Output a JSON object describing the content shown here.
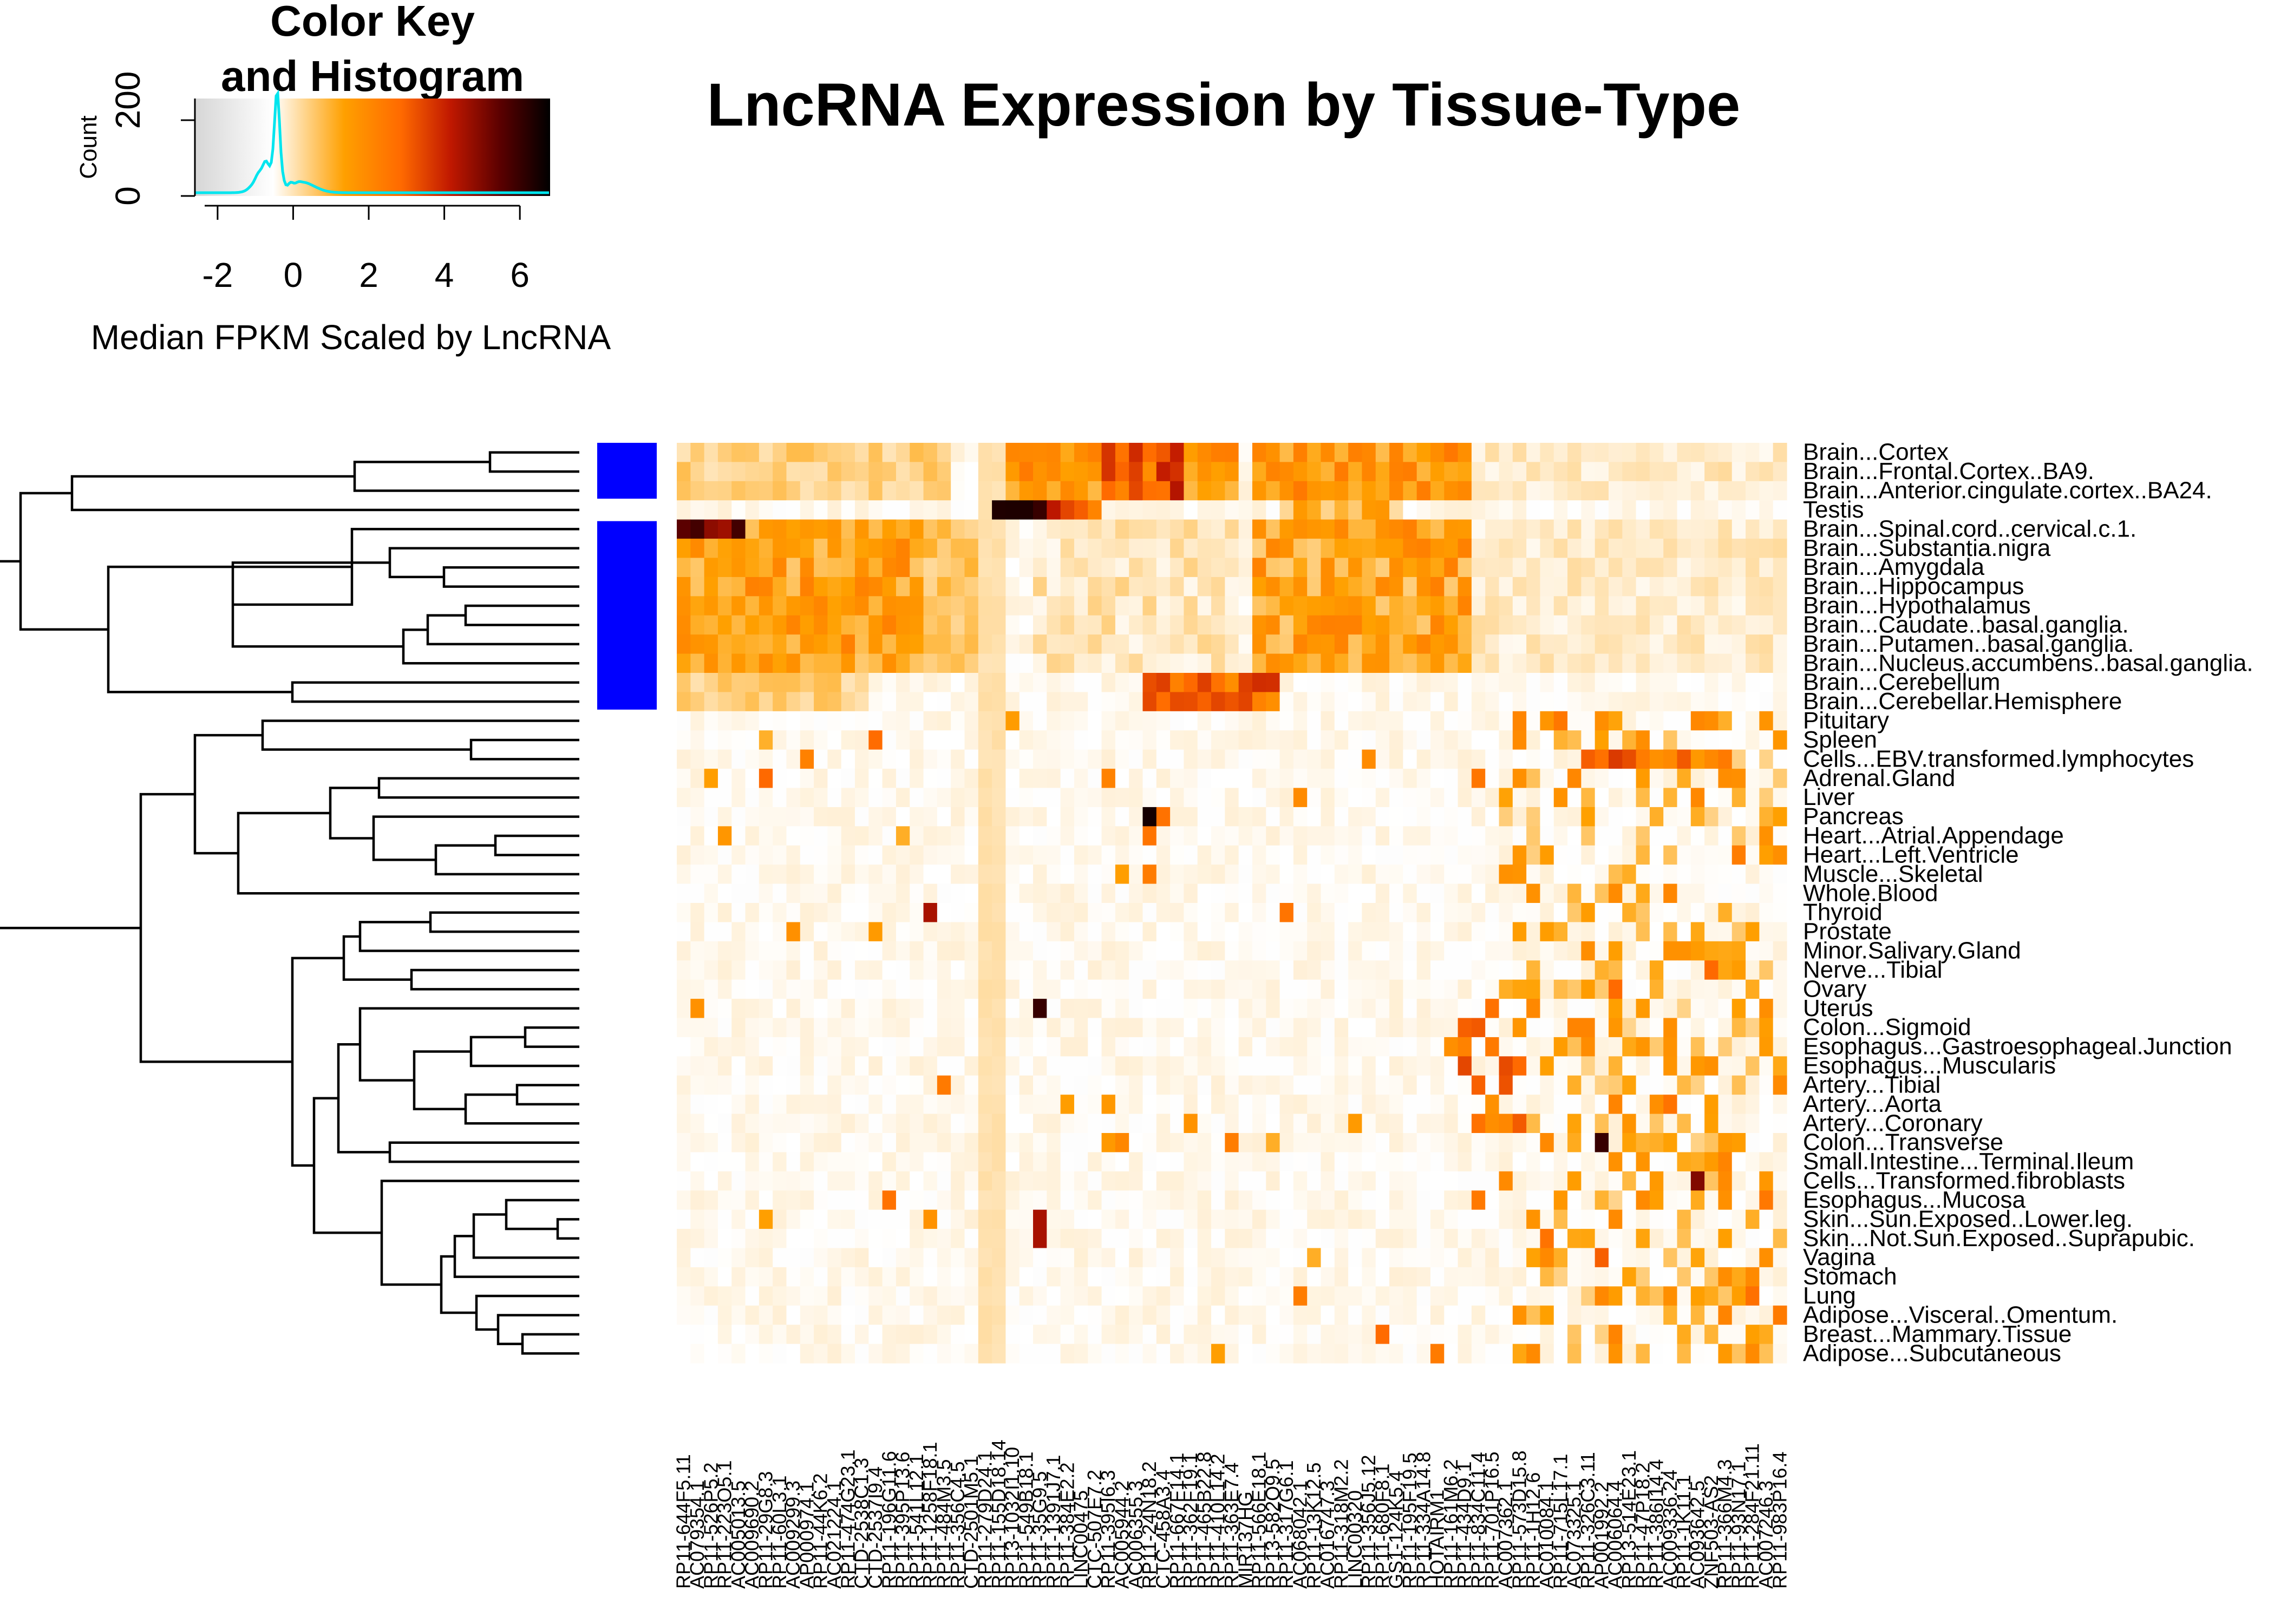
{
  "chart_data": {
    "type": "heatmap",
    "title": "LncRNA Expression by Tissue-Type",
    "color_key": {
      "title_line1": "Color Key",
      "title_line2": "and Histogram",
      "xlabel": "Median FPKM Scaled by LncRNA",
      "ylabel": "Count",
      "x_ticks": [
        "-2",
        "0",
        "2",
        "4",
        "6"
      ],
      "y_ticks": [
        "0",
        "200"
      ],
      "range": [
        -2.6,
        6.8
      ],
      "histogram_color": "#00e5ee",
      "colors": [
        "#d6d6d6",
        "#ffffff",
        "#ffa000",
        "#ff6a00",
        "#c01800",
        "#5a0000",
        "#000000"
      ]
    },
    "side_color": "#0000ff",
    "rows": [
      "Brain...Cortex",
      "Brain...Frontal.Cortex..BA9.",
      "Brain...Anterior.cingulate.cortex..BA24.",
      "Testis",
      "Brain...Spinal.cord..cervical.c.1.",
      "Brain...Substantia.nigra",
      "Brain...Amygdala",
      "Brain...Hippocampus",
      "Brain...Hypothalamus",
      "Brain...Caudate..basal.ganglia.",
      "Brain...Putamen..basal.ganglia.",
      "Brain...Nucleus.accumbens..basal.ganglia.",
      "Brain...Cerebellum",
      "Brain...Cerebellar.Hemisphere",
      "Pituitary",
      "Spleen",
      "Cells...EBV.transformed.lymphocytes",
      "Adrenal.Gland",
      "Liver",
      "Pancreas",
      "Heart...Atrial.Appendage",
      "Heart...Left.Ventricle",
      "Muscle...Skeletal",
      "Whole.Blood",
      "Thyroid",
      "Prostate",
      "Minor.Salivary.Gland",
      "Nerve...Tibial",
      "Ovary",
      "Uterus",
      "Colon...Sigmoid",
      "Esophagus...Gastroesophageal.Junction",
      "Esophagus...Muscularis",
      "Artery...Tibial",
      "Artery...Aorta",
      "Artery...Coronary",
      "Colon...Transverse",
      "Small.Intestine...Terminal.Ileum",
      "Cells...Transformed.fibroblasts",
      "Esophagus...Mucosa",
      "Skin...Sun.Exposed..Lower.leg.",
      "Skin...Not.Sun.Exposed..Suprapubic.",
      "Vagina",
      "Stomach",
      "Lung",
      "Adipose...Visceral..Omentum.",
      "Breast...Mammary.Tissue",
      "Adipose...Subcutaneous"
    ],
    "row_side_colored": [
      1,
      1,
      1,
      0,
      1,
      1,
      1,
      1,
      1,
      1,
      1,
      1,
      1,
      1,
      0,
      0,
      0,
      0,
      0,
      0,
      0,
      0,
      0,
      0,
      0,
      0,
      0,
      0,
      0,
      0,
      0,
      0,
      0,
      0,
      0,
      0,
      0,
      0,
      0,
      0,
      0,
      0,
      0,
      0,
      0,
      0,
      0,
      0
    ],
    "columns": [
      "RP11-644F5.11",
      "AC079354.1",
      "RP11-526P5.2",
      "RP11-223O5.1",
      "AC005013.5",
      "AC009690.2",
      "RP11-29G8.3",
      "RP11-60L3.1",
      "AC009299.3",
      "AP000974.1",
      "RP11-44K6.2",
      "AC021224.1",
      "RP11-474G23.1",
      "CTD-2538C1.3",
      "CTD-2537I9.4",
      "RP11-196G11.6",
      "RP11-395P13.6",
      "RP11-541L12.1",
      "RP11-1258F18.1",
      "RP11-484M3.5",
      "RP11-356C4.5",
      "CTD-2501M5.1",
      "RP11-279D24.1",
      "RP11-155D18.14",
      "RP13-1032I1.10",
      "RP11-549B18.1",
      "RP11-35G9.5",
      "RP11-1391J7.1",
      "RP11-384E2.2",
      "LINC00475",
      "CTC-507E7.2",
      "RP11-395I6.3",
      "AC005944.2",
      "AC006355.3",
      "RP11-24N18.2",
      "CTC-458A3.4",
      "RP11-667F14.1",
      "RP11-362F19.1",
      "RP11-465B22.8",
      "RP11-410L14.2",
      "RP11-363E7.4",
      "MIR137HG",
      "RP11-566E18.1",
      "RP13-582O9.5",
      "RP11-317G6.1",
      "AC068042.1",
      "RP11-13K12.5",
      "AC016747.3",
      "RP11-318M2.2",
      "LINC00320",
      "RP11-356J5.12",
      "RP11-680F8.1",
      "GS1-124K5.4",
      "RP11-195F19.5",
      "RP11-334A14.8",
      "HOTAIRM1",
      "RP11-161M6.2",
      "RP11-434D9.1",
      "RP11-834C11.4",
      "RP11-701P16.5",
      "AC007362.1",
      "RP11-573D15.8",
      "RP11-1H12.6",
      "AC010084.1",
      "RP11-715L17.1",
      "AC073325.1",
      "RP11-326C3.11",
      "AP001992.2",
      "AC006064.4",
      "RP13-514E23.1",
      "RP11-47P18.2",
      "RP11-386I14.4",
      "AC009336.24",
      "RP11-1K11.1",
      "AC093642.5",
      "ZNF503-AS2",
      "RP11-366M4.3",
      "RP11-93N17.1",
      "RP11-284F21.11",
      "AC007246.3",
      "RP11-983P16.4"
    ]
  }
}
